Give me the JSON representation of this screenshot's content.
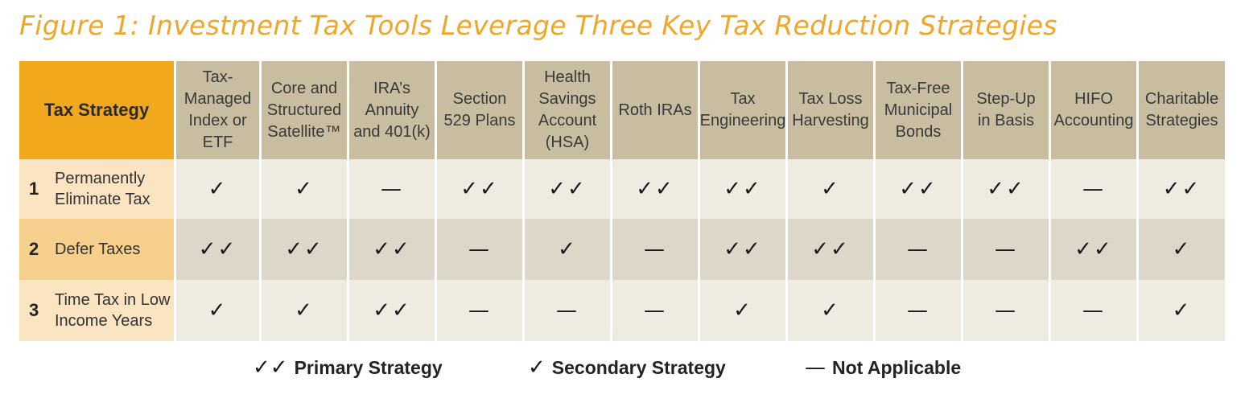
{
  "title": "Figure 1: Investment Tax Tools Leverage Three Key Tax Reduction Strategies",
  "colors": {
    "title": "#f0a628",
    "corner_bg": "#f2a81d",
    "header_bg": "#c8bca1",
    "row1_label_bg": "#fbe4c2",
    "row1_bg": "#eeebe0",
    "row2_label_bg": "#f7d08e",
    "row2_bg": "#ddd7ca",
    "row3_label_bg": "#fbe4c2",
    "row3_bg": "#eeebe0"
  },
  "legend": [
    {
      "symbol": "✓✓",
      "label": "Primary Strategy"
    },
    {
      "symbol": "✓",
      "label": "Secondary Strategy"
    },
    {
      "symbol": "—",
      "label": "Not Applicable"
    }
  ],
  "chart_data": {
    "type": "table",
    "title": "Figure 1: Investment Tax Tools Leverage Three Key Tax Reduction Strategies",
    "corner_header": "Tax Strategy",
    "columns": [
      "Tax-\nManaged\nIndex or\nETF",
      "Core and\nStructured\nSatellite™",
      "IRA’s\nAnnuity\nand 401(k)",
      "Section\n529 Plans",
      "Health\nSavings\nAccount\n(HSA)",
      "Roth IRAs",
      "Tax\nEngineering",
      "Tax Loss\nHarvesting",
      "Tax-Free\nMunicipal\nBonds",
      "Step-Up\nin Basis",
      "HIFO\nAccounting",
      "Charitable\nStrategies"
    ],
    "rows": [
      {
        "number": "1",
        "label": "Permanently\nEliminate Tax",
        "values": [
          "✓",
          "✓",
          "—",
          "✓✓",
          "✓✓",
          "✓✓",
          "✓✓",
          "✓",
          "✓✓",
          "✓✓",
          "—",
          "✓✓"
        ]
      },
      {
        "number": "2",
        "label": "Defer Taxes",
        "values": [
          "✓✓",
          "✓✓",
          "✓✓",
          "—",
          "✓",
          "—",
          "✓✓",
          "✓✓",
          "—",
          "—",
          "✓✓",
          "✓"
        ]
      },
      {
        "number": "3",
        "label": "Time Tax in Low\nIncome Years",
        "values": [
          "✓",
          "✓",
          "✓✓",
          "—",
          "—",
          "—",
          "✓",
          "✓",
          "—",
          "—",
          "—",
          "✓"
        ]
      }
    ]
  }
}
